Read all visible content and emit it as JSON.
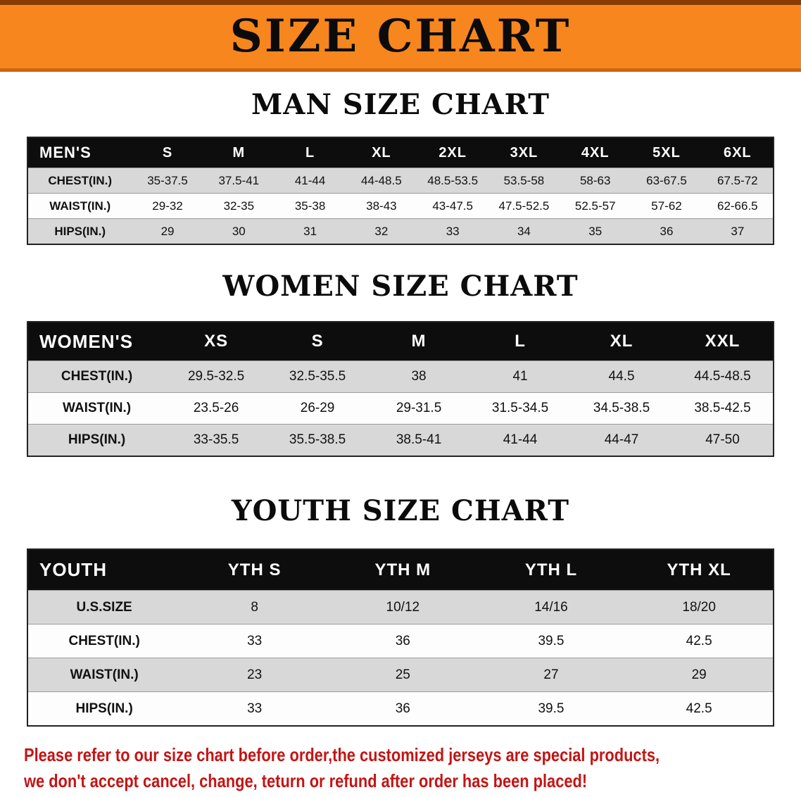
{
  "banner": {
    "title": "SIZE CHART"
  },
  "colors": {
    "banner_orange": "#f6861d",
    "banner_trim_top": "#8a3a05",
    "banner_trim_bottom": "#cf6410",
    "header_black": "#0d0d0d",
    "row_gray": "#d8d8d8",
    "row_white": "#fdfdfd",
    "notice_red": "#c41414",
    "text_black": "#111111"
  },
  "tables": [
    {
      "id": "men",
      "title": "MAN SIZE CHART",
      "header": [
        "MEN'S",
        "S",
        "M",
        "L",
        "XL",
        "2XL",
        "3XL",
        "4XL",
        "5XL",
        "6XL"
      ],
      "rows": [
        {
          "label": "CHEST(IN.)",
          "values": [
            "35-37.5",
            "37.5-41",
            "41-44",
            "44-48.5",
            "48.5-53.5",
            "53.5-58",
            "58-63",
            "63-67.5",
            "67.5-72"
          ]
        },
        {
          "label": "WAIST(IN.)",
          "values": [
            "29-32",
            "32-35",
            "35-38",
            "38-43",
            "43-47.5",
            "47.5-52.5",
            "52.5-57",
            "57-62",
            "62-66.5"
          ]
        },
        {
          "label": "HIPS(IN.)",
          "values": [
            "29",
            "30",
            "31",
            "32",
            "33",
            "34",
            "35",
            "36",
            "37"
          ]
        }
      ]
    },
    {
      "id": "women",
      "title": "WOMEN SIZE CHART",
      "header": [
        "WOMEN'S",
        "XS",
        "S",
        "M",
        "L",
        "XL",
        "XXL"
      ],
      "rows": [
        {
          "label": "CHEST(IN.)",
          "values": [
            "29.5-32.5",
            "32.5-35.5",
            "38",
            "41",
            "44.5",
            "44.5-48.5"
          ]
        },
        {
          "label": "WAIST(IN.)",
          "values": [
            "23.5-26",
            "26-29",
            "29-31.5",
            "31.5-34.5",
            "34.5-38.5",
            "38.5-42.5"
          ]
        },
        {
          "label": "HIPS(IN.)",
          "values": [
            "33-35.5",
            "35.5-38.5",
            "38.5-41",
            "41-44",
            "44-47",
            "47-50"
          ]
        }
      ]
    },
    {
      "id": "youth",
      "title": "YOUTH SIZE CHART",
      "header": [
        "YOUTH",
        "YTH S",
        "YTH M",
        "YTH L",
        "YTH XL"
      ],
      "rows": [
        {
          "label": "U.S.SIZE",
          "values": [
            "8",
            "10/12",
            "14/16",
            "18/20"
          ]
        },
        {
          "label": "CHEST(IN.)",
          "values": [
            "33",
            "36",
            "39.5",
            "42.5"
          ]
        },
        {
          "label": "WAIST(IN.)",
          "values": [
            "23",
            "25",
            "27",
            "29"
          ]
        },
        {
          "label": "HIPS(IN.)",
          "values": [
            "33",
            "36",
            "39.5",
            "42.5"
          ]
        }
      ]
    }
  ],
  "footer": {
    "line1": "Please refer to our size chart before order,the customized jerseys are special products,",
    "line2": "we don't accept cancel, change, teturn or refund after order has been placed!"
  }
}
